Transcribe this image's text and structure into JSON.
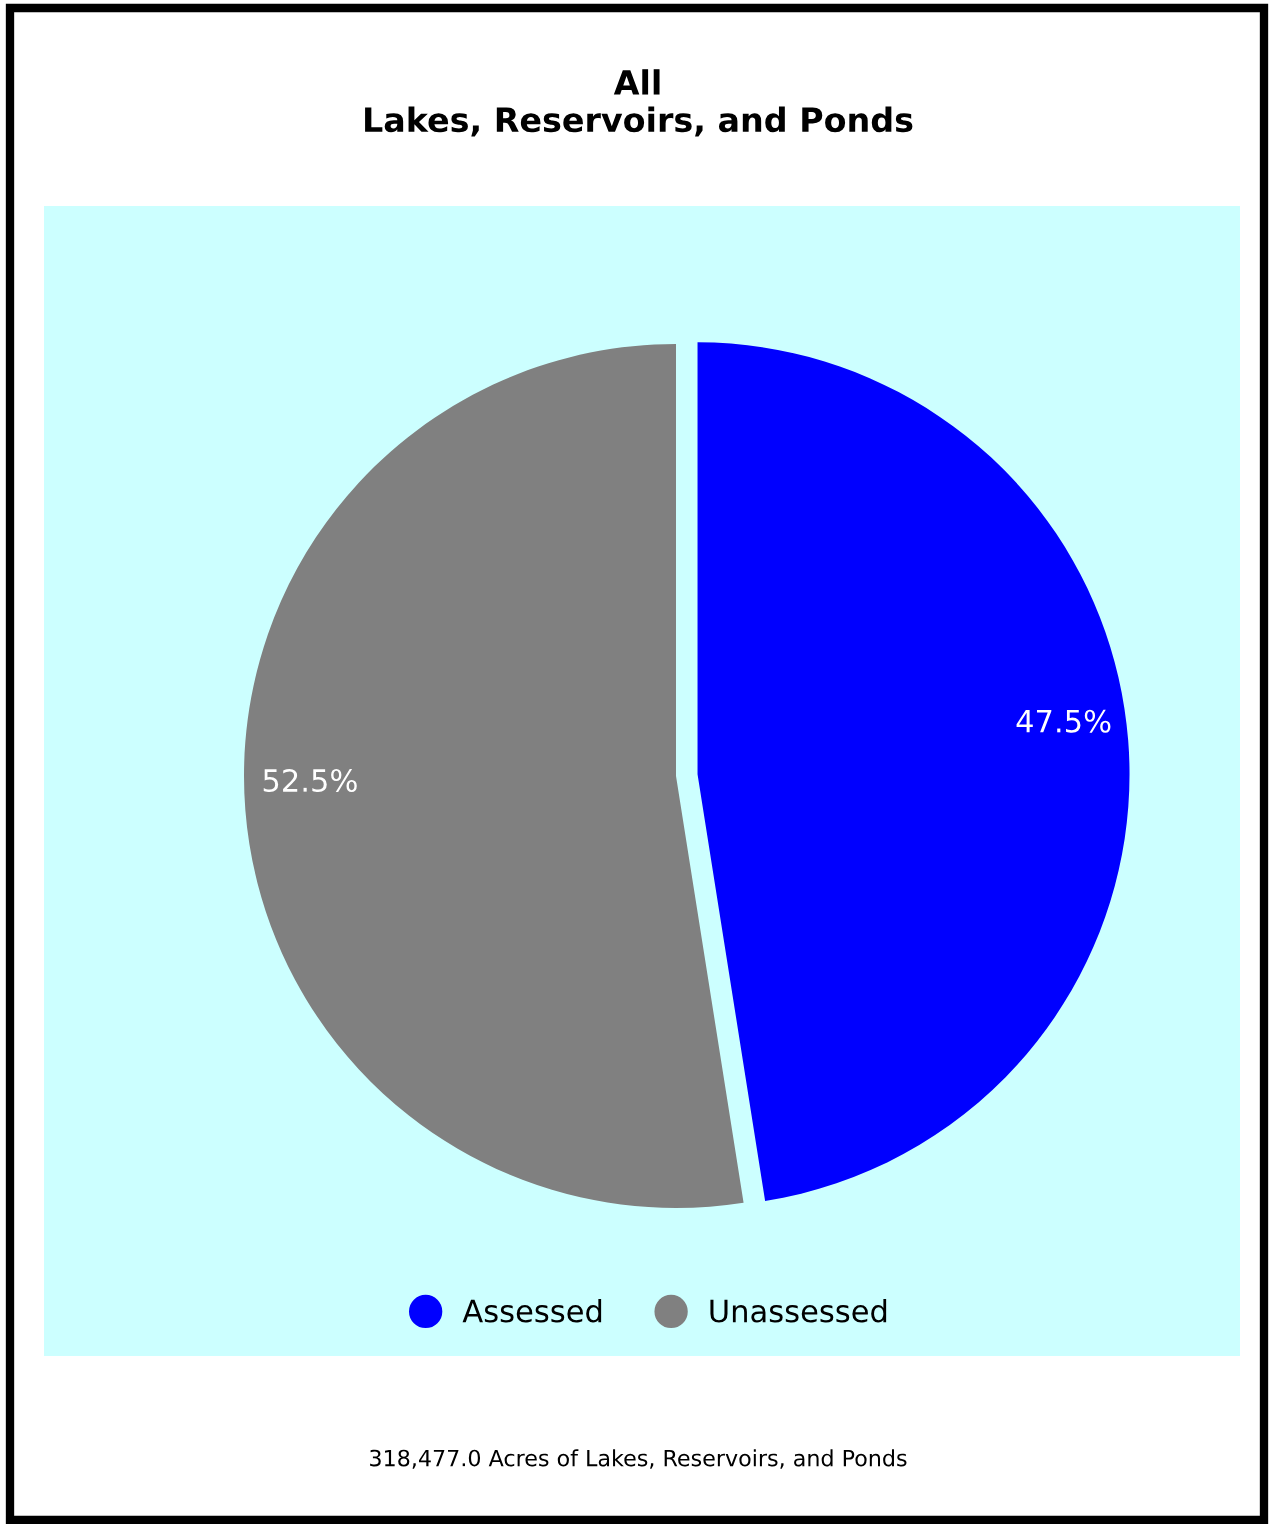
{
  "chart_data": {
    "type": "pie",
    "title": "All\nLakes, Reservoirs, and Ponds",
    "categories": [
      "Assessed",
      "Unassessed"
    ],
    "values": [
      47.5,
      52.5
    ],
    "colors": [
      "#0000ff",
      "#808080"
    ],
    "value_labels": [
      "47.5%",
      "52.5%"
    ],
    "legend": "bottom",
    "annotations": [
      "318,477.0 Acres of Lakes, Reservoirs, and Ponds"
    ]
  }
}
